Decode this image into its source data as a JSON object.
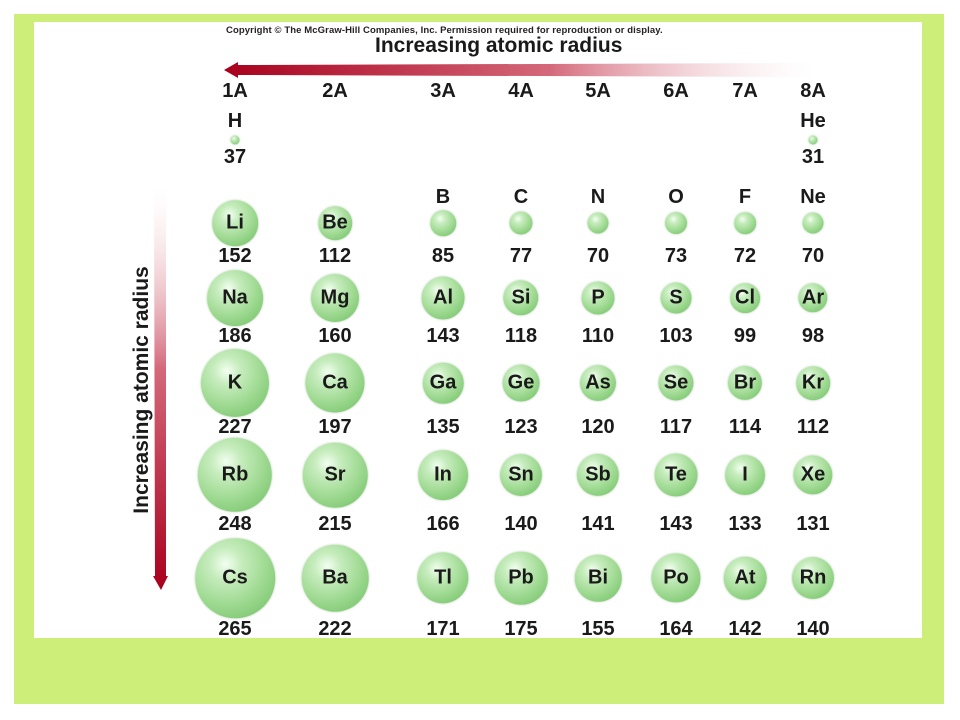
{
  "copyright": "Copyright © The McGraw-Hill Companies, Inc. Permission required for reproduction or display.",
  "horizontal_title": "Increasing atomic radius",
  "vertical_title": "Increasing atomic radius",
  "arrow_color": "#b00020",
  "frame_color": "#cdef79",
  "groups": [
    "1A",
    "2A",
    "3A",
    "4A",
    "5A",
    "6A",
    "7A",
    "8A"
  ],
  "elements": [
    {
      "symbol": "H",
      "radius": 37,
      "group": 0,
      "period": 1,
      "symbol_outside": true
    },
    {
      "symbol": "He",
      "radius": 31,
      "group": 7,
      "period": 1,
      "symbol_outside": true
    },
    {
      "symbol": "Li",
      "radius": 152,
      "group": 0,
      "period": 2,
      "symbol_outside": false
    },
    {
      "symbol": "Be",
      "radius": 112,
      "group": 1,
      "period": 2,
      "symbol_outside": false
    },
    {
      "symbol": "B",
      "radius": 85,
      "group": 2,
      "period": 2,
      "symbol_outside": true
    },
    {
      "symbol": "C",
      "radius": 77,
      "group": 3,
      "period": 2,
      "symbol_outside": true
    },
    {
      "symbol": "N",
      "radius": 70,
      "group": 4,
      "period": 2,
      "symbol_outside": true
    },
    {
      "symbol": "O",
      "radius": 73,
      "group": 5,
      "period": 2,
      "symbol_outside": true
    },
    {
      "symbol": "F",
      "radius": 72,
      "group": 6,
      "period": 2,
      "symbol_outside": true
    },
    {
      "symbol": "Ne",
      "radius": 70,
      "group": 7,
      "period": 2,
      "symbol_outside": true
    },
    {
      "symbol": "Na",
      "radius": 186,
      "group": 0,
      "period": 3,
      "symbol_outside": false
    },
    {
      "symbol": "Mg",
      "radius": 160,
      "group": 1,
      "period": 3,
      "symbol_outside": false
    },
    {
      "symbol": "Al",
      "radius": 143,
      "group": 2,
      "period": 3,
      "symbol_outside": false
    },
    {
      "symbol": "Si",
      "radius": 118,
      "group": 3,
      "period": 3,
      "symbol_outside": false
    },
    {
      "symbol": "P",
      "radius": 110,
      "group": 4,
      "period": 3,
      "symbol_outside": false
    },
    {
      "symbol": "S",
      "radius": 103,
      "group": 5,
      "period": 3,
      "symbol_outside": false
    },
    {
      "symbol": "Cl",
      "radius": 99,
      "group": 6,
      "period": 3,
      "symbol_outside": false
    },
    {
      "symbol": "Ar",
      "radius": 98,
      "group": 7,
      "period": 3,
      "symbol_outside": false
    },
    {
      "symbol": "K",
      "radius": 227,
      "group": 0,
      "period": 4,
      "symbol_outside": false
    },
    {
      "symbol": "Ca",
      "radius": 197,
      "group": 1,
      "period": 4,
      "symbol_outside": false
    },
    {
      "symbol": "Ga",
      "radius": 135,
      "group": 2,
      "period": 4,
      "symbol_outside": false
    },
    {
      "symbol": "Ge",
      "radius": 123,
      "group": 3,
      "period": 4,
      "symbol_outside": false
    },
    {
      "symbol": "As",
      "radius": 120,
      "group": 4,
      "period": 4,
      "symbol_outside": false
    },
    {
      "symbol": "Se",
      "radius": 117,
      "group": 5,
      "period": 4,
      "symbol_outside": false
    },
    {
      "symbol": "Br",
      "radius": 114,
      "group": 6,
      "period": 4,
      "symbol_outside": false
    },
    {
      "symbol": "Kr",
      "radius": 112,
      "group": 7,
      "period": 4,
      "symbol_outside": false
    },
    {
      "symbol": "Rb",
      "radius": 248,
      "group": 0,
      "period": 5,
      "symbol_outside": false
    },
    {
      "symbol": "Sr",
      "radius": 215,
      "group": 1,
      "period": 5,
      "symbol_outside": false
    },
    {
      "symbol": "In",
      "radius": 166,
      "group": 2,
      "period": 5,
      "symbol_outside": false
    },
    {
      "symbol": "Sn",
      "radius": 140,
      "group": 3,
      "period": 5,
      "symbol_outside": false
    },
    {
      "symbol": "Sb",
      "radius": 141,
      "group": 4,
      "period": 5,
      "symbol_outside": false
    },
    {
      "symbol": "Te",
      "radius": 143,
      "group": 5,
      "period": 5,
      "symbol_outside": false
    },
    {
      "symbol": "I",
      "radius": 133,
      "group": 6,
      "period": 5,
      "symbol_outside": false
    },
    {
      "symbol": "Xe",
      "radius": 131,
      "group": 7,
      "period": 5,
      "symbol_outside": false
    },
    {
      "symbol": "Cs",
      "radius": 265,
      "group": 0,
      "period": 6,
      "symbol_outside": false
    },
    {
      "symbol": "Ba",
      "radius": 222,
      "group": 1,
      "period": 6,
      "symbol_outside": false
    },
    {
      "symbol": "Tl",
      "radius": 171,
      "group": 2,
      "period": 6,
      "symbol_outside": false
    },
    {
      "symbol": "Pb",
      "radius": 175,
      "group": 3,
      "period": 6,
      "symbol_outside": false
    },
    {
      "symbol": "Bi",
      "radius": 155,
      "group": 4,
      "period": 6,
      "symbol_outside": false
    },
    {
      "symbol": "Po",
      "radius": 164,
      "group": 5,
      "period": 6,
      "symbol_outside": false
    },
    {
      "symbol": "At",
      "radius": 142,
      "group": 6,
      "period": 6,
      "symbol_outside": false
    },
    {
      "symbol": "Rn",
      "radius": 140,
      "group": 7,
      "period": 6,
      "symbol_outside": false
    }
  ]
}
